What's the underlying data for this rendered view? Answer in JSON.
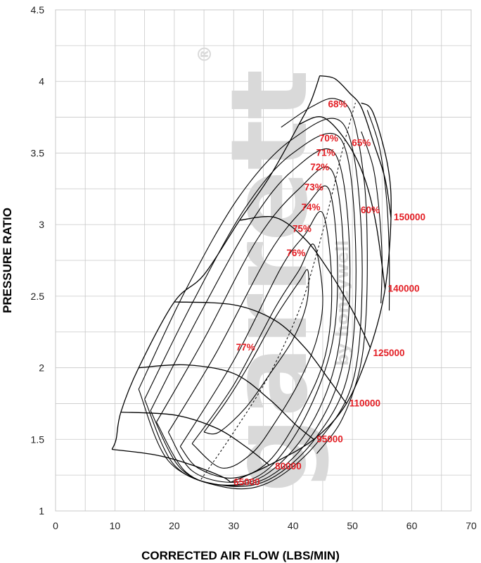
{
  "colors": {
    "curve": "#000000",
    "label": "#e31e24",
    "grid": "#c8c8c8",
    "watermark": "#d9d9d9"
  },
  "watermark": {
    "text": "garrett",
    "mark": "®",
    "sub": "by honeywell"
  },
  "chart_data": {
    "type": "compressor-map",
    "xlabel": "CORRECTED AIR FLOW (LBS/MIN)",
    "ylabel": "PRESSURE RATIO",
    "xlim": [
      0,
      70
    ],
    "ylim": [
      1,
      4.5
    ],
    "xticks": [
      "0",
      "10",
      "20",
      "30",
      "40",
      "50",
      "60",
      "70"
    ],
    "yticks": [
      "1",
      "1.5",
      "2",
      "2.5",
      "3",
      "3.5",
      "4",
      "4.5"
    ],
    "grid": true,
    "speed_lines": [
      {
        "label": "65000",
        "label_at": [
          29.5,
          1.2
        ],
        "points": [
          [
            9.5,
            1.43
          ],
          [
            17,
            1.39
          ],
          [
            23,
            1.32
          ],
          [
            28,
            1.24
          ],
          [
            29.5,
            1.2
          ]
        ]
      },
      {
        "label": "80000",
        "label_at": [
          36.5,
          1.31
        ],
        "points": [
          [
            11,
            1.69
          ],
          [
            20,
            1.67
          ],
          [
            27,
            1.58
          ],
          [
            32,
            1.45
          ],
          [
            36,
            1.32
          ]
        ]
      },
      {
        "label": "95000",
        "label_at": [
          43.5,
          1.5
        ],
        "points": [
          [
            14,
            2.0
          ],
          [
            22,
            2.02
          ],
          [
            30,
            1.96
          ],
          [
            36,
            1.78
          ],
          [
            40.5,
            1.6
          ],
          [
            43.5,
            1.5
          ]
        ]
      },
      {
        "label": "110000",
        "label_at": [
          49,
          1.75
        ],
        "points": [
          [
            20,
            2.46
          ],
          [
            30,
            2.44
          ],
          [
            37,
            2.33
          ],
          [
            42,
            2.14
          ],
          [
            46,
            1.92
          ],
          [
            49,
            1.75
          ]
        ]
      },
      {
        "label": "125000",
        "label_at": [
          53,
          2.1
        ],
        "points": [
          [
            31,
            3.03
          ],
          [
            37,
            3.05
          ],
          [
            42,
            2.9
          ],
          [
            46,
            2.68
          ],
          [
            50,
            2.4
          ],
          [
            53,
            2.14
          ]
        ]
      },
      {
        "label": "140000",
        "label_at": [
          55.5,
          2.55
        ],
        "points": [
          [
            41,
            3.7
          ],
          [
            45,
            3.75
          ],
          [
            49,
            3.58
          ],
          [
            52,
            3.33
          ],
          [
            54,
            3.0
          ],
          [
            55.5,
            2.55
          ]
        ]
      },
      {
        "label": "150000",
        "label_at": [
          56.5,
          3.05
        ],
        "points": [
          [
            44.5,
            4.04
          ],
          [
            47,
            4.02
          ],
          [
            49.5,
            3.92
          ],
          [
            51.5,
            3.82
          ],
          [
            53.5,
            3.58
          ],
          [
            55.5,
            3.32
          ],
          [
            56.5,
            3.05
          ]
        ]
      }
    ],
    "surge_line": {
      "points": [
        [
          9.5,
          1.43
        ],
        [
          10.2,
          1.5
        ],
        [
          11,
          1.69
        ],
        [
          14,
          2.0
        ],
        [
          20,
          2.46
        ],
        [
          25,
          2.65
        ],
        [
          31,
          3.03
        ],
        [
          36,
          3.33
        ],
        [
          41,
          3.7
        ],
        [
          43,
          3.86
        ],
        [
          44.5,
          4.04
        ]
      ]
    },
    "efficiency_islands": [
      {
        "label": "77%",
        "label_at": [
          32,
          2.12
        ],
        "points": [
          [
            25,
            1.55
          ],
          [
            29,
            1.78
          ],
          [
            33,
            2.05
          ],
          [
            37,
            2.35
          ],
          [
            41,
            2.6
          ],
          [
            42.5,
            2.68
          ],
          [
            42.3,
            2.45
          ],
          [
            40,
            2.2
          ],
          [
            36,
            1.95
          ],
          [
            32,
            1.72
          ],
          [
            27.5,
            1.55
          ],
          [
            25,
            1.55
          ]
        ]
      },
      {
        "label": "76%",
        "label_at": [
          40.5,
          2.78
        ],
        "points": [
          [
            23,
            1.47
          ],
          [
            30,
            1.88
          ],
          [
            37,
            2.42
          ],
          [
            41,
            2.68
          ],
          [
            43.5,
            2.86
          ],
          [
            45,
            2.5
          ],
          [
            44,
            2.2
          ],
          [
            41,
            1.9
          ],
          [
            37,
            1.62
          ],
          [
            33,
            1.4
          ],
          [
            28,
            1.3
          ],
          [
            23,
            1.47
          ]
        ]
      },
      {
        "label": "75%",
        "label_at": [
          41.5,
          2.95
        ],
        "points": [
          [
            21,
            1.45
          ],
          [
            30,
            2.05
          ],
          [
            38,
            2.7
          ],
          [
            42,
            2.93
          ],
          [
            45,
            3.08
          ],
          [
            46.5,
            2.6
          ],
          [
            45.5,
            2.1
          ],
          [
            41.5,
            1.7
          ],
          [
            36,
            1.35
          ],
          [
            30,
            1.23
          ],
          [
            24,
            1.3
          ],
          [
            21,
            1.45
          ]
        ]
      },
      {
        "label": "74%",
        "label_at": [
          43,
          3.1
        ],
        "points": [
          [
            19,
            1.55
          ],
          [
            27,
            2.1
          ],
          [
            36,
            2.8
          ],
          [
            42,
            3.12
          ],
          [
            46,
            3.25
          ],
          [
            47.5,
            2.7
          ],
          [
            46.5,
            2.15
          ],
          [
            42,
            1.65
          ],
          [
            36,
            1.3
          ],
          [
            30,
            1.2
          ],
          [
            23,
            1.28
          ],
          [
            19,
            1.55
          ]
        ]
      },
      {
        "label": "73%",
        "label_at": [
          43.5,
          3.24
        ],
        "points": [
          [
            17,
            1.62
          ],
          [
            25,
            2.2
          ],
          [
            34,
            2.9
          ],
          [
            41,
            3.25
          ],
          [
            46.5,
            3.38
          ],
          [
            48.5,
            2.8
          ],
          [
            47.5,
            2.1
          ],
          [
            43,
            1.6
          ],
          [
            36,
            1.27
          ],
          [
            29,
            1.18
          ],
          [
            22,
            1.27
          ],
          [
            17,
            1.62
          ]
        ]
      },
      {
        "label": "72%",
        "label_at": [
          44.5,
          3.38
        ],
        "points": [
          [
            16,
            1.7
          ],
          [
            24,
            2.35
          ],
          [
            33,
            3.02
          ],
          [
            40,
            3.38
          ],
          [
            47,
            3.5
          ],
          [
            49.5,
            2.85
          ],
          [
            48.5,
            2.05
          ],
          [
            43.5,
            1.55
          ],
          [
            36,
            1.24
          ],
          [
            28,
            1.18
          ],
          [
            21,
            1.3
          ],
          [
            16,
            1.7
          ]
        ]
      },
      {
        "label": "71%",
        "label_at": [
          45.5,
          3.48
        ],
        "points": [
          [
            15,
            1.78
          ],
          [
            23,
            2.45
          ],
          [
            32,
            3.12
          ],
          [
            40,
            3.5
          ],
          [
            48,
            3.6
          ],
          [
            50.5,
            2.9
          ],
          [
            49.5,
            2.0
          ],
          [
            44,
            1.52
          ],
          [
            36,
            1.22
          ],
          [
            28,
            1.18
          ],
          [
            20,
            1.32
          ],
          [
            15,
            1.78
          ]
        ]
      },
      {
        "label": "70%",
        "label_at": [
          46,
          3.58
        ],
        "points": [
          [
            14,
            1.85
          ],
          [
            22,
            2.55
          ],
          [
            31,
            3.2
          ],
          [
            40,
            3.6
          ],
          [
            48.5,
            3.7
          ],
          [
            51.5,
            2.95
          ],
          [
            50.5,
            1.98
          ],
          [
            44.5,
            1.5
          ],
          [
            36,
            1.2
          ],
          [
            28,
            1.17
          ],
          [
            19,
            1.35
          ],
          [
            14,
            1.85
          ]
        ]
      },
      {
        "label": "68%",
        "label_at": [
          47.5,
          3.82
        ],
        "points": [
          [
            38,
            3.68
          ],
          [
            43,
            3.82
          ],
          [
            47,
            3.88
          ],
          [
            50,
            3.76
          ],
          [
            52,
            3.3
          ],
          [
            52.5,
            2.8
          ],
          [
            52.2,
            2.3
          ],
          [
            51,
            1.95
          ],
          [
            48,
            1.62
          ],
          [
            44,
            1.4
          ]
        ]
      },
      {
        "label": "65%",
        "label_at": [
          51.5,
          3.55
        ],
        "points": [
          [
            51.5,
            3.65
          ],
          [
            53.5,
            3.4
          ],
          [
            54.5,
            3.1
          ],
          [
            55,
            2.75
          ],
          [
            54.8,
            2.45
          ]
        ]
      },
      {
        "label": "60%",
        "label_at": [
          53,
          3.08
        ],
        "points": [
          [
            52.5,
            3.8
          ],
          [
            54.5,
            3.55
          ],
          [
            55.7,
            3.2
          ],
          [
            56.2,
            2.8
          ],
          [
            56.2,
            2.4
          ]
        ]
      }
    ],
    "max_efficiency_line": {
      "points": [
        [
          24.5,
          1.22
        ],
        [
          30,
          1.55
        ],
        [
          36,
          1.95
        ],
        [
          41,
          2.4
        ],
        [
          44,
          2.8
        ],
        [
          46.5,
          3.2
        ],
        [
          48.5,
          3.55
        ],
        [
          50.5,
          3.85
        ]
      ]
    },
    "choke_line": {
      "points": [
        [
          29.5,
          1.2
        ],
        [
          36,
          1.32
        ],
        [
          43.5,
          1.5
        ],
        [
          49,
          1.75
        ],
        [
          53,
          2.14
        ],
        [
          55.5,
          2.55
        ],
        [
          56.5,
          3.05
        ],
        [
          56,
          3.4
        ],
        [
          53.5,
          3.78
        ],
        [
          51.5,
          3.85
        ]
      ]
    }
  }
}
